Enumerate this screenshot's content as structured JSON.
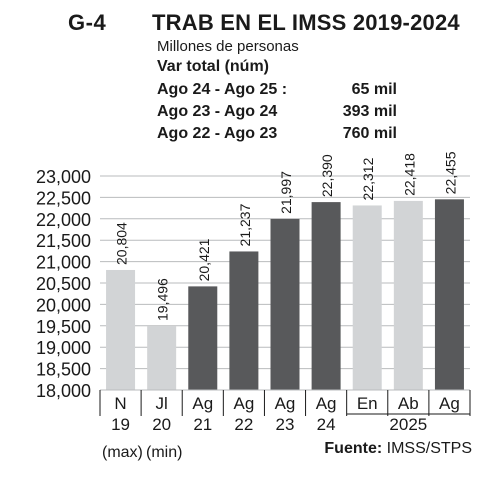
{
  "header": {
    "figure_id": "G-4",
    "title": "TRAB EN EL IMSS 2019-2024",
    "unit": "Millones de personas",
    "var_title": "Var total (núm)",
    "var_rows": [
      {
        "period": "Ago 24  -  Ago 25 :",
        "value": "65 mil"
      },
      {
        "period": "Ago 23  -  Ago 24",
        "value": "393 mil"
      },
      {
        "period": "Ago 22  -  Ago 23",
        "value": "760 mil"
      }
    ]
  },
  "source": {
    "label": "Fuente:",
    "text": "IMSS/STPS"
  },
  "colors": {
    "light": "#d2d4d6",
    "dark": "#58595b",
    "grid": "#b9bbbd",
    "text": "#1a1a1a"
  },
  "chart_data": {
    "type": "bar",
    "categories": [
      "N 19",
      "Jl 20",
      "Ag 21",
      "Ag 22",
      "Ag 23",
      "Ag 24",
      "En 2025",
      "Ab 2025",
      "Ag 2025"
    ],
    "category_lines": [
      [
        "N",
        "19"
      ],
      [
        "Jl",
        "20"
      ],
      [
        "Ag",
        "21"
      ],
      [
        "Ag",
        "22"
      ],
      [
        "Ag",
        "23"
      ],
      [
        "Ag",
        "24"
      ],
      [
        "En",
        ""
      ],
      [
        "Ab",
        ""
      ],
      [
        "Ag",
        ""
      ]
    ],
    "group_label": "2025",
    "notes": [
      "(max)",
      "(min)"
    ],
    "values": [
      20804,
      19496,
      20421,
      21237,
      21997,
      22390,
      22312,
      22418,
      22455
    ],
    "data_labels": [
      "20,804",
      "19,496",
      "20,421",
      "21,237",
      "21,997",
      "22,390",
      "22,312",
      "22,418",
      "22,455"
    ],
    "bar_tones": [
      "light",
      "light",
      "dark",
      "dark",
      "dark",
      "dark",
      "light",
      "light",
      "dark"
    ],
    "ylim": [
      18000,
      23000
    ],
    "yticks": [
      18000,
      18500,
      19000,
      19500,
      20000,
      20500,
      21000,
      21500,
      22000,
      22500,
      23000
    ],
    "ytick_labels": [
      "18,000",
      "18,500",
      "19,000",
      "19,500",
      "20,000",
      "20,500",
      "21,000",
      "21,500",
      "22,000",
      "22,500",
      "23,000"
    ],
    "grid": true
  }
}
